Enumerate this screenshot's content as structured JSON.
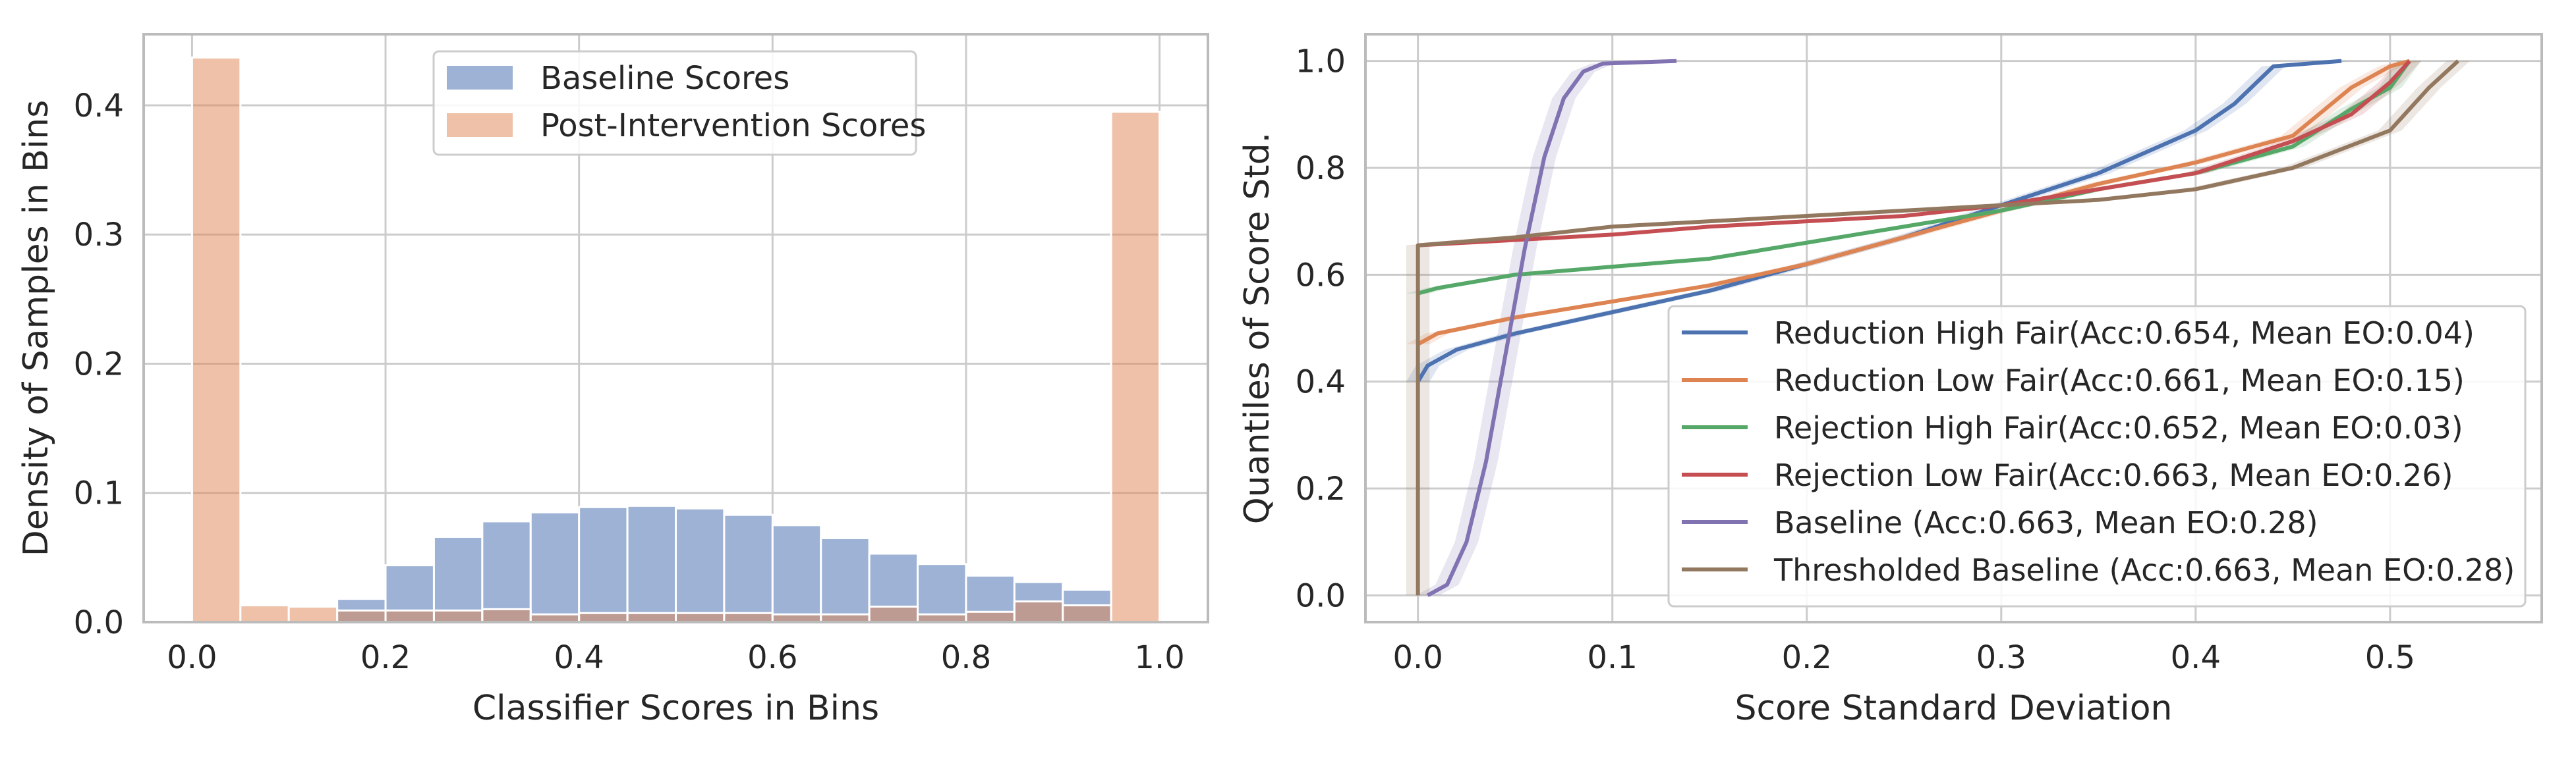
{
  "chart_data": [
    {
      "type": "bar",
      "xlabel": "Classifier Scores in Bins",
      "ylabel": "Density of Samples in Bins",
      "xlim": [
        -0.05,
        1.05
      ],
      "ylim": [
        0,
        0.455
      ],
      "xticks": [
        "0.0",
        "0.2",
        "0.4",
        "0.6",
        "0.8",
        "1.0"
      ],
      "yticks": [
        "0.0",
        "0.1",
        "0.2",
        "0.3",
        "0.4"
      ],
      "grid": true,
      "legend_position": "top-center",
      "bin_width": 0.05,
      "series": [
        {
          "name": "Baseline Scores",
          "color": "#4c72b0",
          "bin_starts": [
            0.15,
            0.2,
            0.25,
            0.3,
            0.35,
            0.4,
            0.45,
            0.5,
            0.55,
            0.6,
            0.65,
            0.7,
            0.75,
            0.8,
            0.85,
            0.9
          ],
          "values": [
            0.018,
            0.044,
            0.066,
            0.078,
            0.085,
            0.089,
            0.09,
            0.088,
            0.083,
            0.075,
            0.065,
            0.053,
            0.045,
            0.036,
            0.031,
            0.025
          ]
        },
        {
          "name": "Post-Intervention Scores",
          "color": "#dd8452",
          "bin_starts": [
            0.0,
            0.05,
            0.1,
            0.15,
            0.2,
            0.25,
            0.3,
            0.35,
            0.4,
            0.45,
            0.5,
            0.55,
            0.6,
            0.65,
            0.7,
            0.75,
            0.8,
            0.85,
            0.9,
            0.95
          ],
          "values": [
            0.437,
            0.013,
            0.012,
            0.009,
            0.009,
            0.009,
            0.01,
            0.006,
            0.007,
            0.007,
            0.007,
            0.007,
            0.006,
            0.006,
            0.012,
            0.006,
            0.008,
            0.016,
            0.013,
            0.395
          ]
        }
      ]
    },
    {
      "type": "line",
      "xlabel": "Score Standard Deviation",
      "ylabel": "Quantiles of Score Std.",
      "xlim": [
        -0.027,
        0.578
      ],
      "ylim": [
        -0.05,
        1.05
      ],
      "xticks": [
        "0.0",
        "0.1",
        "0.2",
        "0.3",
        "0.4",
        "0.5"
      ],
      "yticks": [
        "0.0",
        "0.2",
        "0.4",
        "0.6",
        "0.8",
        "1.0"
      ],
      "grid": true,
      "legend_position": "lower-right",
      "series": [
        {
          "name": "Reduction High Fair(Acc:0.654, Mean EO:0.04)",
          "color": "#4c72b0",
          "x": [
            0.0,
            0.005,
            0.02,
            0.05,
            0.1,
            0.15,
            0.2,
            0.25,
            0.3,
            0.35,
            0.4,
            0.42,
            0.44,
            0.475
          ],
          "y": [
            0.4,
            0.43,
            0.46,
            0.49,
            0.53,
            0.57,
            0.62,
            0.67,
            0.73,
            0.79,
            0.87,
            0.92,
            0.99,
            1.0
          ]
        },
        {
          "name": "Reduction Low Fair(Acc:0.661, Mean EO:0.15)",
          "color": "#dd8452",
          "x": [
            0.0,
            0.01,
            0.05,
            0.1,
            0.15,
            0.2,
            0.25,
            0.3,
            0.35,
            0.4,
            0.45,
            0.48,
            0.5,
            0.51
          ],
          "y": [
            0.47,
            0.49,
            0.52,
            0.55,
            0.58,
            0.62,
            0.67,
            0.72,
            0.77,
            0.81,
            0.86,
            0.95,
            0.99,
            1.0
          ]
        },
        {
          "name": "Rejection High Fair(Acc:0.652, Mean EO:0.03)",
          "color": "#55a868",
          "x": [
            0.0,
            0.01,
            0.05,
            0.1,
            0.15,
            0.2,
            0.25,
            0.3,
            0.35,
            0.4,
            0.45,
            0.48,
            0.5,
            0.51
          ],
          "y": [
            0.565,
            0.575,
            0.6,
            0.615,
            0.63,
            0.66,
            0.69,
            0.72,
            0.76,
            0.79,
            0.84,
            0.91,
            0.95,
            1.0
          ]
        },
        {
          "name": "Rejection Low Fair(Acc:0.663, Mean EO:0.26)",
          "color": "#c44e52",
          "x": [
            0.0,
            0.05,
            0.1,
            0.15,
            0.2,
            0.25,
            0.3,
            0.35,
            0.4,
            0.45,
            0.48,
            0.5,
            0.51
          ],
          "y": [
            0.655,
            0.665,
            0.675,
            0.69,
            0.7,
            0.71,
            0.73,
            0.76,
            0.79,
            0.85,
            0.9,
            0.96,
            1.0
          ]
        },
        {
          "name": "Baseline (Acc:0.663, Mean EO:0.28)",
          "color": "#8172b2",
          "x": [
            0.005,
            0.015,
            0.025,
            0.035,
            0.045,
            0.055,
            0.065,
            0.075,
            0.085,
            0.095,
            0.133
          ],
          "y": [
            0.0,
            0.02,
            0.1,
            0.25,
            0.45,
            0.65,
            0.82,
            0.93,
            0.98,
            0.995,
            1.0
          ]
        },
        {
          "name": "Thresholded Baseline (Acc:0.663, Mean EO:0.28)",
          "color": "#937860",
          "x": [
            0.0,
            0.0,
            0.05,
            0.1,
            0.15,
            0.2,
            0.25,
            0.3,
            0.35,
            0.4,
            0.45,
            0.5,
            0.52,
            0.535
          ],
          "y": [
            0.0,
            0.655,
            0.67,
            0.69,
            0.7,
            0.71,
            0.72,
            0.73,
            0.74,
            0.76,
            0.8,
            0.87,
            0.95,
            1.0
          ]
        }
      ]
    }
  ]
}
